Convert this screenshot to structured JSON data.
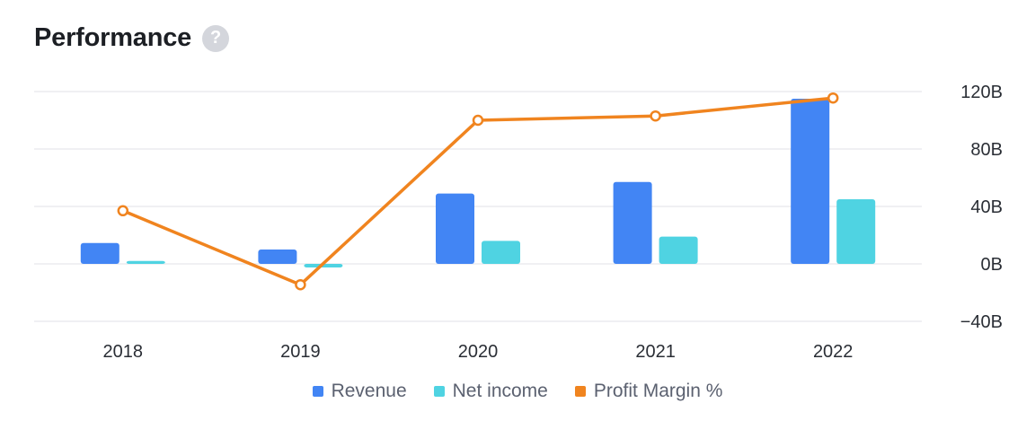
{
  "header": {
    "title": "Performance",
    "help_glyph": "?"
  },
  "legend": [
    {
      "label": "Revenue",
      "color": "#4285f4"
    },
    {
      "label": "Net income",
      "color": "#4fd3e2"
    },
    {
      "label": "Profit Margin %",
      "color": "#f0841f"
    }
  ],
  "chart_data": {
    "type": "bar",
    "categories": [
      "2018",
      "2019",
      "2020",
      "2021",
      "2022"
    ],
    "series": [
      {
        "name": "Revenue",
        "type": "bar",
        "color": "#4285f4",
        "values": [
          14.5,
          10,
          49,
          57,
          115
        ]
      },
      {
        "name": "Net income",
        "type": "bar",
        "color": "#4fd3e2",
        "values": [
          2,
          -2.5,
          16,
          19,
          45
        ]
      },
      {
        "name": "Profit Margin %",
        "type": "line",
        "color": "#f0841f",
        "values": [
          37,
          -14.5,
          100,
          103,
          115.5
        ]
      }
    ],
    "y_axis": {
      "position": "right",
      "ticks": [
        "120B",
        "80B",
        "40B",
        "0B",
        "−40B"
      ],
      "tick_values": [
        120,
        80,
        40,
        0,
        -40
      ],
      "range": [
        -40,
        120
      ]
    },
    "grid": true,
    "legend_position": "bottom"
  }
}
